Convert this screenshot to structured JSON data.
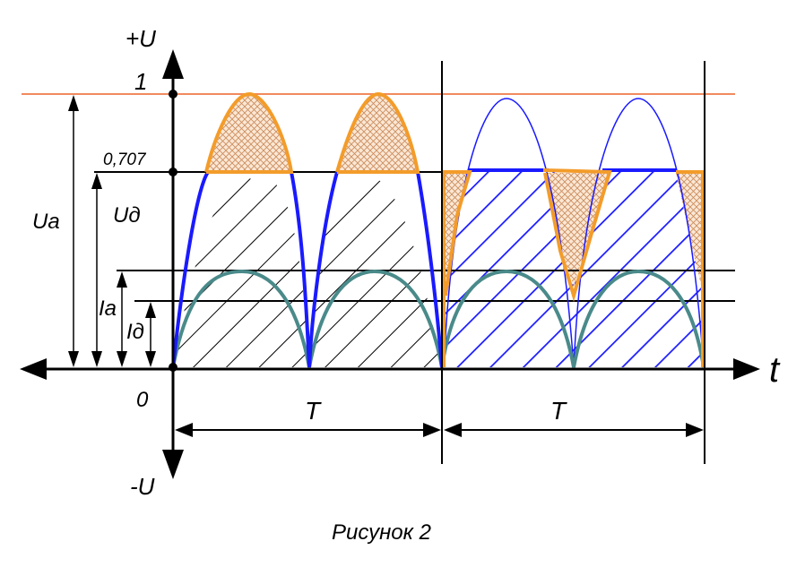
{
  "caption": "Рисунок 2",
  "labels": {
    "plus_u": "+U",
    "minus_u": "-U",
    "one": "1",
    "level_0707": "0,707",
    "zero": "0",
    "t_axis": "t",
    "ua": "Ua",
    "ud": "Uд",
    "ia": "Ia",
    "id": "Iд",
    "period_1": "T",
    "period_2": "T"
  },
  "colors": {
    "axis": "#000000",
    "peak_line": "#f08a5d",
    "voltage_curve": "#1a1aff",
    "current_curve": "#4a8a8a",
    "clipped_outline": "#f39c2a",
    "hatch_black": "#000000",
    "hatch_blue": "#1a1aff",
    "crosshatch": "#d9905a"
  },
  "icons": {
    "arrowheads": "triangle-arrow-icon",
    "level_points": "dot-marker-icon"
  }
}
